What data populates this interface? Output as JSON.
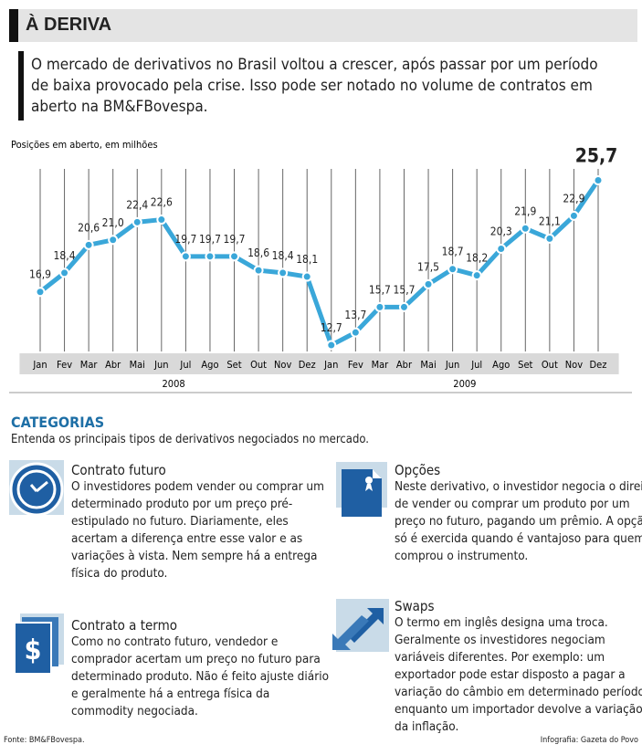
{
  "header": {
    "title": "À DERIVA",
    "intro": [
      "O mercado de derivativos no Brasil voltou a crescer, após passar por um período",
      "de baixa provocado pela crise. Isso pode ser notado no volume de contratos em",
      "aberto na BM&FBovespa."
    ]
  },
  "chart_data": {
    "type": "line",
    "subtitle": "Posições em aberto, em milhões",
    "categories": [
      "Jan",
      "Fev",
      "Mar",
      "Abr",
      "Mai",
      "Jun",
      "Jul",
      "Ago",
      "Set",
      "Out",
      "Nov",
      "Dez",
      "Jan",
      "Fev",
      "Mar",
      "Abr",
      "Mai",
      "Jun",
      "Jul",
      "Ago",
      "Set",
      "Out",
      "Nov",
      "Dez"
    ],
    "years": [
      "2008",
      "2009"
    ],
    "series": [
      {
        "name": "Posições em aberto",
        "color": "#3aa7d9",
        "values": [
          16.9,
          18.4,
          20.6,
          21.0,
          22.4,
          22.6,
          19.7,
          19.7,
          19.7,
          18.6,
          18.4,
          18.1,
          12.7,
          13.7,
          15.7,
          15.7,
          17.5,
          18.7,
          18.2,
          20.3,
          21.9,
          21.1,
          22.9,
          25.7
        ],
        "value_labels": [
          "16,9",
          "18,4",
          "20,6",
          "21,0",
          "22,4",
          "22,6",
          "19,7",
          "19,7",
          "19,7",
          "18,6",
          "18,4",
          "18,1",
          "12,7",
          "13,7",
          "15,7",
          "15,7",
          "17,5",
          "18,7",
          "18,2",
          "20,3",
          "21,9",
          "21,1",
          "22,9",
          "25,7"
        ]
      }
    ],
    "ylim": [
      12.2,
      26.6
    ],
    "grid": true
  },
  "categories_section": {
    "title": "CATEGORIAS",
    "subtitle": "Entenda os principais tipos de derivativos negociados no mercado.",
    "items": [
      {
        "title": "Contrato futuro",
        "lines": [
          "O investidores podem vender ou comprar um",
          "determinado produto por um preço pré-",
          "estipulado no futuro. Diariamente, eles",
          "acertam a diferença entre esse valor e as",
          "variações à vista. Nem sempre há a entrega",
          "física do produto."
        ]
      },
      {
        "title": "Opções",
        "lines": [
          "Neste derivativo, o investidor negocia o direito",
          "de vender ou comprar um produto por um",
          "preço no futuro, pagando um prêmio. A opção",
          "só é exercida quando é vantajoso para quem",
          "comprou o instrumento."
        ]
      },
      {
        "title": "Contrato a termo",
        "lines": [
          "Como no contrato futuro, vendedor e",
          "comprador acertam um preço no futuro para",
          "determinado produto. Não é feito ajuste diário",
          "e geralmente há a entrega física da",
          "commodity negociada."
        ]
      },
      {
        "title": "Swaps",
        "lines": [
          "O termo em inglês designa uma troca.",
          "Geralmente os investidores negociam",
          "variáveis diferentes. Por exemplo: um",
          "exportador pode estar disposto a pagar a",
          "variação do câmbio em determinado período,",
          "enquanto um importador devolve a variação",
          "da inflação."
        ]
      }
    ]
  },
  "footer": {
    "source": "Fonte: BM&FBovespa.",
    "credit": "Infografia: Gazeta do Povo"
  }
}
